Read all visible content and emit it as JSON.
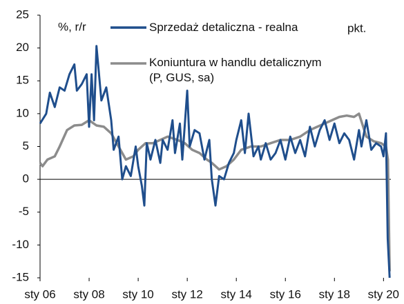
{
  "chart_data": {
    "type": "line",
    "ylabel": "%, r/r",
    "y2label": "pkt.",
    "xlim": [
      2006,
      2020.3
    ],
    "xticks": [
      {
        "value": 2006,
        "label": "sty 06"
      },
      {
        "value": 2008,
        "label": "sty 08"
      },
      {
        "value": 2010,
        "label": "sty 10"
      },
      {
        "value": 2012,
        "label": "sty 12"
      },
      {
        "value": 2014,
        "label": "sty 14"
      },
      {
        "value": 2016,
        "label": "sty 16"
      },
      {
        "value": 2018,
        "label": "sty 18"
      },
      {
        "value": 2020,
        "label": "sty 20"
      }
    ],
    "ylim": [
      -15,
      25
    ],
    "yticks": [
      -15,
      -10,
      -5,
      0,
      5,
      10,
      15,
      20,
      25
    ],
    "series": [
      {
        "name": "Sprzedaż detaliczna - realna",
        "color": "#1f4e8c",
        "x": [
          2006.0,
          2006.25,
          2006.4,
          2006.6,
          2006.8,
          2007.0,
          2007.2,
          2007.4,
          2007.5,
          2007.7,
          2007.9,
          2008.0,
          2008.1,
          2008.2,
          2008.3,
          2008.5,
          2008.7,
          2008.9,
          2009.0,
          2009.2,
          2009.35,
          2009.5,
          2009.7,
          2009.9,
          2010.0,
          2010.15,
          2010.25,
          2010.35,
          2010.5,
          2010.7,
          2010.9,
          2011.0,
          2011.2,
          2011.4,
          2011.5,
          2011.7,
          2011.8,
          2012.0,
          2012.1,
          2012.3,
          2012.5,
          2012.7,
          2012.9,
          2013.0,
          2013.15,
          2013.3,
          2013.5,
          2013.7,
          2013.9,
          2014.0,
          2014.2,
          2014.35,
          2014.5,
          2014.7,
          2014.9,
          2015.0,
          2015.2,
          2015.4,
          2015.6,
          2015.8,
          2016.0,
          2016.2,
          2016.4,
          2016.6,
          2016.8,
          2017.0,
          2017.2,
          2017.4,
          2017.6,
          2017.8,
          2018.0,
          2018.2,
          2018.4,
          2018.6,
          2018.8,
          2019.0,
          2019.1,
          2019.3,
          2019.5,
          2019.7,
          2019.9,
          2020.0,
          2020.1,
          2020.17,
          2020.25
        ],
        "values": [
          8.5,
          10,
          13.2,
          11,
          14,
          13.5,
          16,
          17.5,
          13.5,
          14.5,
          16,
          8,
          16,
          9,
          20.3,
          12,
          14,
          9,
          4.5,
          6.5,
          0,
          2,
          0.5,
          5,
          2,
          -1,
          -4,
          5.5,
          3,
          6,
          2.5,
          6,
          4.5,
          9,
          4,
          8.5,
          3,
          13.5,
          5,
          7.5,
          7,
          3,
          6,
          0,
          -4,
          0.5,
          0,
          2.5,
          4,
          6,
          9,
          4,
          10,
          3.5,
          5,
          3,
          5.5,
          3,
          4,
          6,
          3,
          6.5,
          4,
          6,
          3.5,
          8,
          5,
          7.5,
          9,
          6,
          8.5,
          5.5,
          7,
          6,
          3,
          7.5,
          5,
          9,
          4.5,
          5.5,
          5,
          3.5,
          7,
          -9,
          -15
        ]
      },
      {
        "name": "Koniuntura w handlu detalicznym (P, GUS, sa)",
        "color": "#8c8c8c",
        "x": [
          2006.0,
          2006.1,
          2006.3,
          2006.6,
          2006.8,
          2007.1,
          2007.4,
          2007.7,
          2008.0,
          2008.3,
          2008.6,
          2008.9,
          2009.2,
          2009.5,
          2009.8,
          2010.0,
          2010.3,
          2010.6,
          2010.9,
          2011.2,
          2011.6,
          2011.9,
          2012.2,
          2012.5,
          2012.8,
          2013.0,
          2013.3,
          2013.6,
          2013.9,
          2014.2,
          2014.6,
          2015.0,
          2015.4,
          2015.8,
          2016.2,
          2016.6,
          2017.0,
          2017.3,
          2017.6,
          2017.9,
          2018.2,
          2018.5,
          2018.8,
          2019.0,
          2019.3,
          2019.6,
          2019.9,
          2020.1,
          2020.18,
          2020.25
        ],
        "values": [
          2.5,
          2,
          3,
          3.5,
          5,
          7.5,
          8.2,
          8.3,
          9,
          8.2,
          8,
          7,
          5,
          3,
          3.5,
          4.5,
          5.5,
          5.5,
          6,
          6.5,
          6,
          5.5,
          4.5,
          4,
          3,
          2.5,
          1.5,
          2,
          3,
          4.5,
          5,
          5,
          5.5,
          6,
          6,
          6.5,
          7.5,
          8,
          8.5,
          9,
          9.5,
          9.7,
          9.5,
          10,
          6.5,
          5.8,
          5.5,
          5,
          3,
          -14
        ]
      }
    ]
  }
}
